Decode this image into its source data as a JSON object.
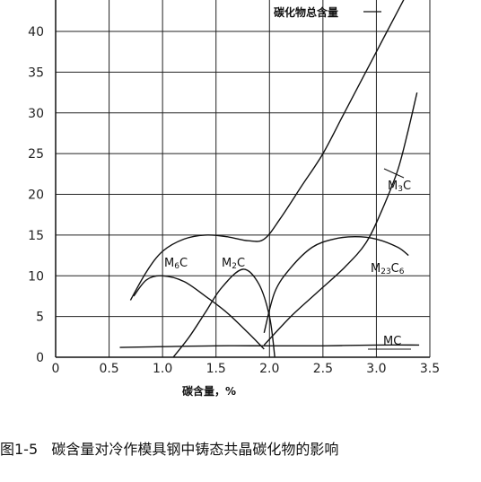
{
  "chart_data": {
    "type": "line",
    "title": "碳化物总含量",
    "xlabel": "碳含量，%",
    "ylabel": "",
    "xlim": [
      0,
      3.5
    ],
    "ylim": [
      0,
      45
    ],
    "x_ticks": [
      0,
      0.5,
      1.0,
      1.5,
      2.0,
      2.5,
      3.0,
      3.5
    ],
    "x_tick_labels": [
      "0",
      "0.5",
      "1.0",
      "1.5",
      "2.0",
      "2.5",
      "3.0",
      "3.5"
    ],
    "y_ticks": [
      0,
      5,
      10,
      15,
      20,
      25,
      30,
      35,
      40
    ],
    "y_tick_labels": [
      "0",
      "5",
      "10",
      "15",
      "20",
      "25",
      "30",
      "35",
      "40"
    ],
    "grid": true,
    "series": [
      {
        "name": "碳化物总含量",
        "x": [
          0.7,
          0.85,
          1.0,
          1.2,
          1.4,
          1.6,
          1.8,
          1.95,
          2.1,
          2.3,
          2.5,
          2.7,
          2.9,
          3.1,
          3.3
        ],
        "y": [
          7,
          10.5,
          13,
          14.5,
          15,
          14.8,
          14.3,
          14.5,
          17,
          21,
          25,
          30,
          35,
          40,
          45
        ]
      },
      {
        "name": "M3C",
        "x": [
          1.95,
          2.2,
          2.45,
          2.7,
          2.9,
          3.05,
          3.2,
          3.3,
          3.38
        ],
        "y": [
          1.5,
          5,
          8,
          11,
          14,
          18,
          23,
          28,
          32.5
        ]
      },
      {
        "name": "M23C6",
        "x": [
          1.95,
          2.05,
          2.2,
          2.4,
          2.6,
          2.8,
          3.0,
          3.2,
          3.3
        ],
        "y": [
          3,
          8,
          11,
          13.5,
          14.5,
          14.8,
          14.5,
          13.5,
          12.5
        ]
      },
      {
        "name": "M6C",
        "x": [
          0.73,
          0.85,
          1.0,
          1.2,
          1.4,
          1.6,
          1.8,
          1.95
        ],
        "y": [
          7.5,
          9.5,
          10,
          9.3,
          7.5,
          5.5,
          3,
          1
        ]
      },
      {
        "name": "M2C",
        "x": [
          1.1,
          1.25,
          1.4,
          1.55,
          1.75,
          1.9,
          2.0,
          2.05
        ],
        "y": [
          0,
          2.5,
          5.5,
          8.5,
          10.8,
          9,
          5,
          0
        ]
      },
      {
        "name": "MC",
        "x": [
          0.6,
          1.0,
          1.5,
          2.0,
          2.5,
          3.0,
          3.4
        ],
        "y": [
          1.2,
          1.3,
          1.4,
          1.4,
          1.4,
          1.5,
          1.5
        ]
      }
    ],
    "annotations": [
      "碳化物总含量",
      "M3C",
      "M23C6",
      "M6C",
      "M2C",
      "MC"
    ]
  },
  "caption": {
    "figure_number": "图1-5",
    "text": "碳含量对冷作模具钢中铸态共晶碳化物的影响"
  }
}
